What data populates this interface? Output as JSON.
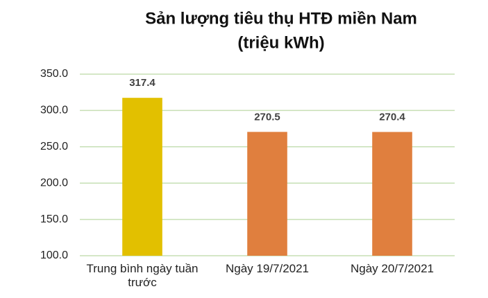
{
  "chart_data": {
    "type": "bar",
    "title": "Sản lượng tiêu thụ HTĐ miền Nam",
    "subtitle": "(triệu kWh)",
    "categories": [
      "Trung bình ngày tuần trước",
      "Ngày 19/7/2021",
      "Ngày 20/7/2021"
    ],
    "values": [
      317.4,
      270.5,
      270.4
    ],
    "colors": [
      "#e2c000",
      "#e07f3e",
      "#e07f3e"
    ],
    "ylim": [
      100,
      350
    ],
    "yticks": [
      {
        "value": 100,
        "label": "100.0"
      },
      {
        "value": 150,
        "label": "150.0"
      },
      {
        "value": 200,
        "label": "200.0"
      },
      {
        "value": 250,
        "label": "250.0"
      },
      {
        "value": 300,
        "label": "300.0"
      },
      {
        "value": 350,
        "label": "350.0"
      }
    ],
    "grid": true
  }
}
